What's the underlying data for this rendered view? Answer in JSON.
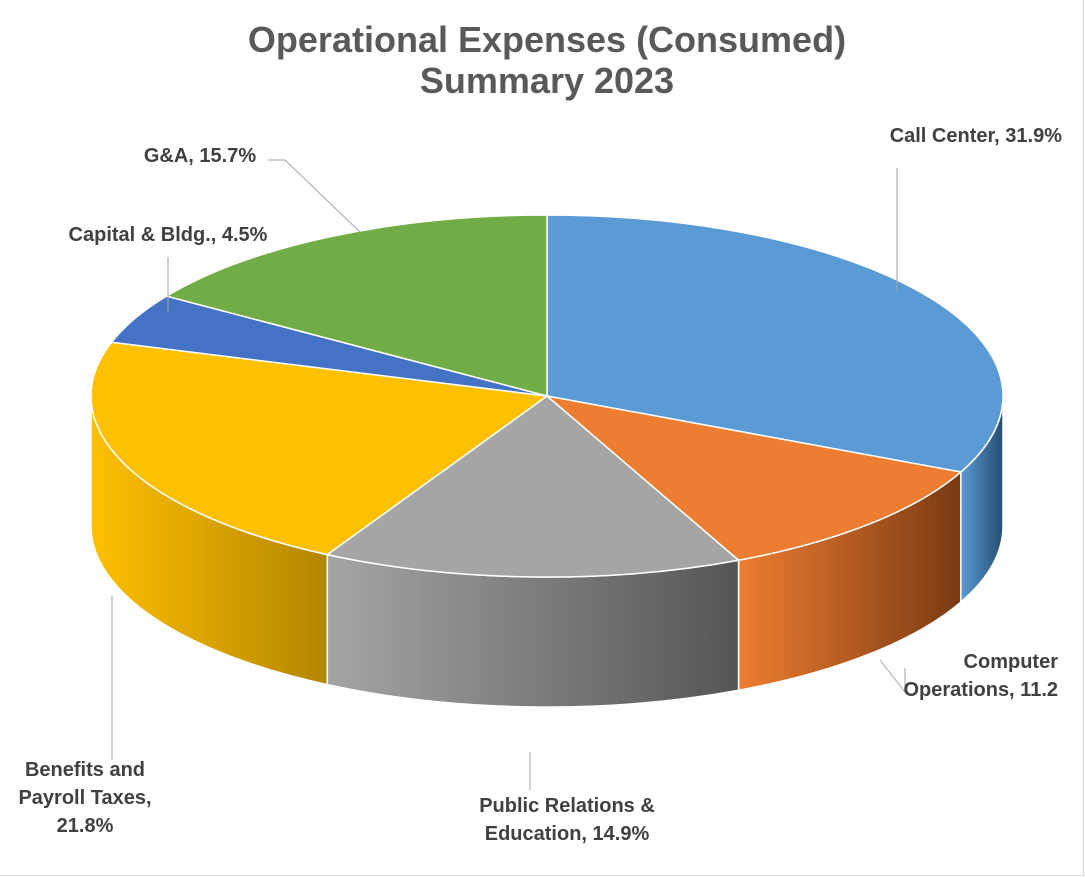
{
  "chart_data": {
    "type": "pie",
    "title": [
      "Operational Expenses (Consumed)",
      "Summary 2023"
    ],
    "legend": "none",
    "slices": [
      {
        "name": "Call Center",
        "value": 31.9,
        "label": [
          "Call Center, 31.9%"
        ],
        "color": "#5b9bd5",
        "side_color": "#254d70"
      },
      {
        "name": "Computer Operations",
        "value": 11.2,
        "label": [
          "Computer",
          "Operations, 11.2"
        ],
        "color": "#ed7d31",
        "side_color": "#7a3a12"
      },
      {
        "name": "Public Relations & Education",
        "value": 14.9,
        "label": [
          "Public Relations &",
          "Education, 14.9%"
        ],
        "color": "#a5a5a5",
        "side_color": "#555555"
      },
      {
        "name": "Benefits and Payroll Taxes",
        "value": 21.8,
        "label": [
          "Benefits and",
          "Payroll Taxes,",
          "21.8%"
        ],
        "color": "#ffc000",
        "side_color": "#b38600"
      },
      {
        "name": "Capital & Bldg.",
        "value": 4.5,
        "label": [
          "Capital & Bldg., 4.5%"
        ],
        "color": "#4472c4",
        "side_color": "#223a66"
      },
      {
        "name": "G&A",
        "value": 15.7,
        "label": [
          "G&A, 15.7%"
        ],
        "color": "#70ad47",
        "side_color": "#3d6326"
      }
    ]
  }
}
